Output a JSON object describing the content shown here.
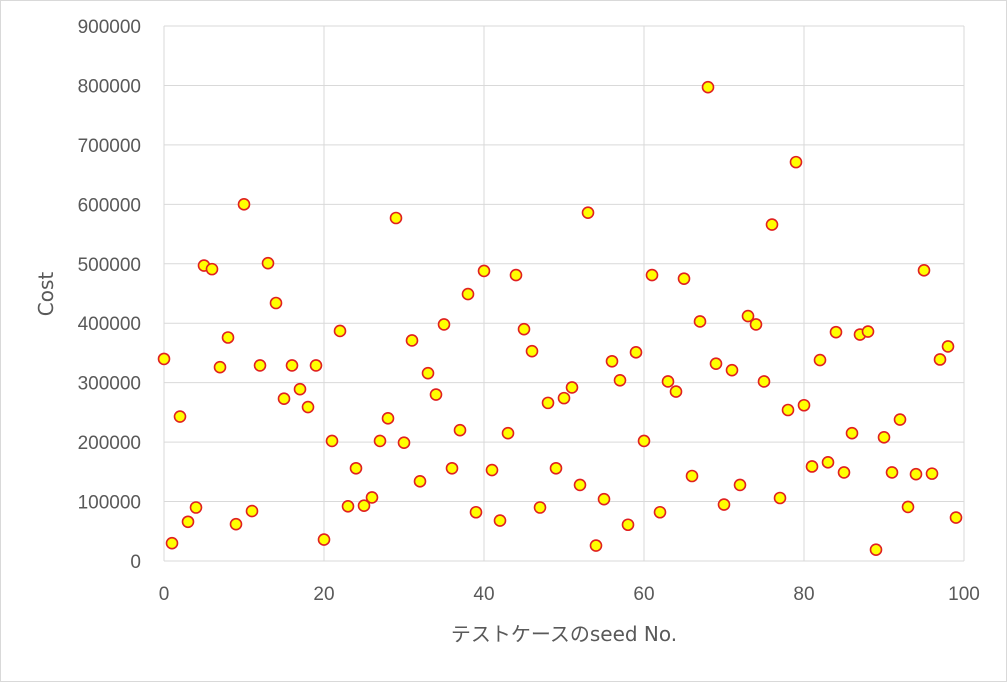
{
  "chart_data": {
    "type": "scatter",
    "title": "",
    "xlabel": "テストケースのseed No.",
    "ylabel": "Cost",
    "xlim": [
      0,
      100
    ],
    "ylim": [
      0,
      900000
    ],
    "x_ticks": [
      0,
      20,
      40,
      60,
      80,
      100
    ],
    "y_ticks": [
      0,
      100000,
      200000,
      300000,
      400000,
      500000,
      600000,
      700000,
      800000,
      900000
    ],
    "grid": true,
    "legend": "none",
    "marker_fill": "#ffff00",
    "marker_edge": "#e02020",
    "series": [
      {
        "x": [
          0,
          1,
          2,
          3,
          4,
          5,
          6,
          7,
          8,
          9,
          10,
          11,
          12,
          13,
          14,
          15,
          16,
          17,
          18,
          19,
          20,
          21,
          22,
          23,
          24,
          25,
          26,
          27,
          28,
          29,
          30,
          31,
          32,
          33,
          34,
          35,
          36,
          37,
          38,
          39,
          40,
          41,
          42,
          43,
          44,
          45,
          46,
          47,
          48,
          49,
          50,
          51,
          52,
          53,
          54,
          55,
          56,
          57,
          58,
          59,
          60,
          61,
          62,
          63,
          64,
          65,
          66,
          67,
          68,
          69,
          70,
          71,
          72,
          73,
          74,
          75,
          76,
          77,
          78,
          79,
          80,
          81,
          82,
          83,
          84,
          85,
          86,
          87,
          88,
          89,
          90,
          91,
          92,
          93,
          94,
          95,
          96,
          97,
          98,
          99
        ],
        "y": [
          340000,
          30000,
          243000,
          66000,
          90000,
          497000,
          491000,
          326000,
          376000,
          62000,
          600000,
          84000,
          329000,
          501000,
          434000,
          273000,
          329000,
          289000,
          259000,
          329000,
          36000,
          202000,
          387000,
          92000,
          156000,
          93000,
          107000,
          202000,
          240000,
          577000,
          199000,
          371000,
          134000,
          316000,
          280000,
          398000,
          156000,
          220000,
          449000,
          82000,
          488000,
          153000,
          68000,
          215000,
          481000,
          390000,
          353000,
          90000,
          266000,
          156000,
          274000,
          292000,
          128000,
          586000,
          26000,
          104000,
          336000,
          304000,
          61000,
          351000,
          202000,
          481000,
          82000,
          302000,
          285000,
          475000,
          143000,
          403000,
          797000,
          332000,
          95000,
          321000,
          128000,
          412000,
          398000,
          302000,
          566000,
          106000,
          254000,
          671000,
          262000,
          159000,
          338000,
          166000,
          385000,
          149000,
          215000,
          381000,
          386000,
          19000,
          208000,
          149000,
          238000,
          91000,
          146000,
          489000,
          147000,
          339000,
          361000,
          73000
        ]
      }
    ]
  }
}
